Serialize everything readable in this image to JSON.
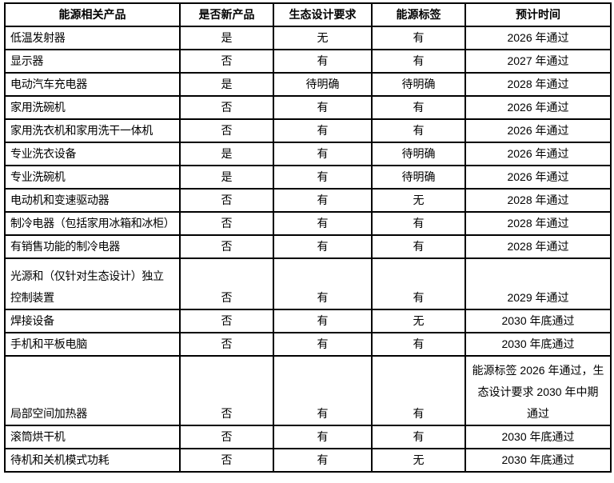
{
  "table": {
    "columns": [
      {
        "label": "能源相关产品"
      },
      {
        "label": "是否新产品"
      },
      {
        "label": "生态设计要求"
      },
      {
        "label": "能源标签"
      },
      {
        "label": "预计时间"
      }
    ],
    "rows": [
      {
        "product": "低温发射器",
        "is_new": "是",
        "ecodesign": "无",
        "energy_label": "有",
        "timeline": "2026 年通过"
      },
      {
        "product": "显示器",
        "is_new": "否",
        "ecodesign": "有",
        "energy_label": "有",
        "timeline": "2027 年通过"
      },
      {
        "product": "电动汽车充电器",
        "is_new": "是",
        "ecodesign": "待明确",
        "energy_label": "待明确",
        "timeline": "2028 年通过"
      },
      {
        "product": "家用洗碗机",
        "is_new": "否",
        "ecodesign": "有",
        "energy_label": "有",
        "timeline": "2026 年通过"
      },
      {
        "product": "家用洗衣机和家用洗干一体机",
        "is_new": "否",
        "ecodesign": "有",
        "energy_label": "有",
        "timeline": "2026 年通过"
      },
      {
        "product": "专业洗衣设备",
        "is_new": "是",
        "ecodesign": "有",
        "energy_label": "待明确",
        "timeline": "2026 年通过"
      },
      {
        "product": "专业洗碗机",
        "is_new": "是",
        "ecodesign": "有",
        "energy_label": "待明确",
        "timeline": "2026 年通过"
      },
      {
        "product": "电动机和变速驱动器",
        "is_new": "否",
        "ecodesign": "有",
        "energy_label": "无",
        "timeline": "2028 年通过"
      },
      {
        "product": "制冷电器（包括家用冰箱和冰柜）",
        "is_new": "否",
        "ecodesign": "有",
        "energy_label": "有",
        "timeline": "2028 年通过"
      },
      {
        "product": "有销售功能的制冷电器",
        "is_new": "否",
        "ecodesign": "有",
        "energy_label": "有",
        "timeline": "2028 年通过"
      },
      {
        "product": "光源和（仅针对生态设计）独立\n控制装置",
        "is_new": "否",
        "ecodesign": "有",
        "energy_label": "有",
        "timeline": "2029 年通过"
      },
      {
        "product": "焊接设备",
        "is_new": "否",
        "ecodesign": "有",
        "energy_label": "无",
        "timeline": "2030 年底通过"
      },
      {
        "product": "手机和平板电脑",
        "is_new": "否",
        "ecodesign": "有",
        "energy_label": "有",
        "timeline": "2030 年底通过"
      },
      {
        "product": "局部空间加热器",
        "is_new": "否",
        "ecodesign": "有",
        "energy_label": "有",
        "timeline": "能源标签 2026 年通过，生\n态设计要求 2030 年中期\n通过"
      },
      {
        "product": "滚筒烘干机",
        "is_new": "否",
        "ecodesign": "有",
        "energy_label": "有",
        "timeline": "2030 年底通过"
      },
      {
        "product": "待机和关机模式功耗",
        "is_new": "否",
        "ecodesign": "有",
        "energy_label": "无",
        "timeline": "2030 年底通过"
      }
    ]
  }
}
